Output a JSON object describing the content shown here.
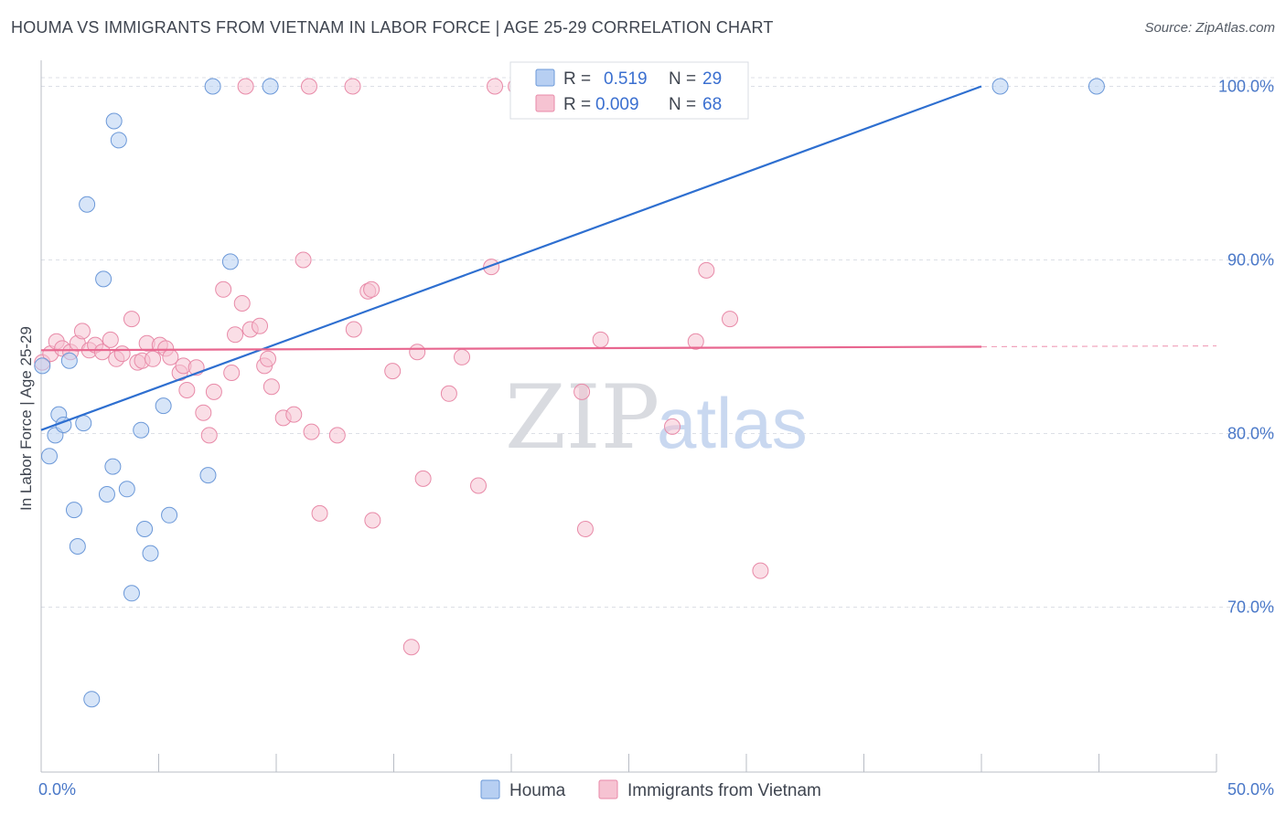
{
  "title": "HOUMA VS IMMIGRANTS FROM VIETNAM IN LABOR FORCE | AGE 25-29 CORRELATION CHART",
  "source": "Source: ZipAtlas.com",
  "watermark": {
    "zip": "ZIP",
    "atlas": "atlas"
  },
  "colors": {
    "blue_fill": "#b7cff2",
    "blue_stroke": "#6b98d8",
    "blue_line": "#2e6fd0",
    "pink_fill": "#f6c3d2",
    "pink_stroke": "#e88aa8",
    "pink_line": "#e8668f",
    "grid": "#dcdfe6",
    "tick_text": "#4a78c8"
  },
  "legend": {
    "rows": [
      {
        "r_label": "R =",
        "r_value": "0.519",
        "n_label": "N =",
        "n_value": "29"
      },
      {
        "r_label": "R =",
        "r_value": "0.009",
        "n_label": "N =",
        "n_value": "68"
      }
    ]
  },
  "chart_data": {
    "type": "scatter",
    "title": "HOUMA VS IMMIGRANTS FROM VIETNAM IN LABOR FORCE | AGE 25-29 CORRELATION CHART",
    "xlabel": "",
    "ylabel": "In Labor Force | Age 25-29",
    "xlim": [
      0,
      50
    ],
    "ylim": [
      60.5,
      101.5
    ],
    "x_tick_labels": [
      "0.0%",
      "50.0%"
    ],
    "y_ticks": [
      70,
      80,
      90,
      100
    ],
    "y_tick_labels": [
      "70.0%",
      "80.0%",
      "90.0%",
      "100.0%"
    ],
    "grid": true,
    "legend_position": "top-center",
    "series": [
      {
        "name": "Houma",
        "color": "blue",
        "r": 0.519,
        "n": 29,
        "trend": {
          "x0": 0.0,
          "y0": 80.2,
          "x1": 40.0,
          "y1": 100.0,
          "dashed_to": 40.0
        },
        "points": [
          [
            0.05,
            83.9
          ],
          [
            0.35,
            78.7
          ],
          [
            0.6,
            79.9
          ],
          [
            0.75,
            81.1
          ],
          [
            0.95,
            80.5
          ],
          [
            1.2,
            84.2
          ],
          [
            1.4,
            75.6
          ],
          [
            1.55,
            73.5
          ],
          [
            1.8,
            80.6
          ],
          [
            1.95,
            93.2
          ],
          [
            2.15,
            64.7
          ],
          [
            2.65,
            88.9
          ],
          [
            2.8,
            76.5
          ],
          [
            3.05,
            78.1
          ],
          [
            3.1,
            98.0
          ],
          [
            3.3,
            96.9
          ],
          [
            3.65,
            76.8
          ],
          [
            3.85,
            70.8
          ],
          [
            4.25,
            80.2
          ],
          [
            4.4,
            74.5
          ],
          [
            4.65,
            73.1
          ],
          [
            5.2,
            81.6
          ],
          [
            5.45,
            75.3
          ],
          [
            7.1,
            77.6
          ],
          [
            7.3,
            100.0
          ],
          [
            8.05,
            89.9
          ],
          [
            9.75,
            100.0
          ],
          [
            40.8,
            100.0
          ],
          [
            44.9,
            100.0
          ]
        ]
      },
      {
        "name": "Immigrants from Vietnam",
        "color": "pink",
        "r": 0.009,
        "n": 68,
        "trend": {
          "x0": 0.0,
          "y0": 84.8,
          "x1": 40.0,
          "y1": 85.0,
          "dashed_to": 50.0
        },
        "points": [
          [
            0.05,
            84.1
          ],
          [
            0.4,
            84.6
          ],
          [
            0.65,
            85.3
          ],
          [
            0.9,
            84.9
          ],
          [
            1.25,
            84.7
          ],
          [
            1.55,
            85.2
          ],
          [
            1.75,
            85.9
          ],
          [
            2.05,
            84.8
          ],
          [
            2.3,
            85.1
          ],
          [
            2.6,
            84.7
          ],
          [
            2.95,
            85.4
          ],
          [
            3.2,
            84.3
          ],
          [
            3.45,
            84.6
          ],
          [
            3.85,
            86.6
          ],
          [
            4.1,
            84.1
          ],
          [
            4.3,
            84.2
          ],
          [
            4.5,
            85.2
          ],
          [
            4.75,
            84.3
          ],
          [
            5.05,
            85.1
          ],
          [
            5.3,
            84.9
          ],
          [
            5.5,
            84.4
          ],
          [
            5.9,
            83.5
          ],
          [
            6.05,
            83.9
          ],
          [
            6.2,
            82.5
          ],
          [
            6.6,
            83.8
          ],
          [
            6.9,
            81.2
          ],
          [
            7.15,
            79.9
          ],
          [
            7.35,
            82.4
          ],
          [
            7.75,
            88.3
          ],
          [
            8.1,
            83.5
          ],
          [
            8.25,
            85.7
          ],
          [
            8.55,
            87.5
          ],
          [
            8.9,
            86.0
          ],
          [
            9.5,
            83.9
          ],
          [
            9.65,
            84.3
          ],
          [
            9.8,
            82.7
          ],
          [
            10.3,
            80.9
          ],
          [
            10.75,
            81.1
          ],
          [
            11.15,
            90.0
          ],
          [
            11.5,
            80.1
          ],
          [
            11.85,
            75.4
          ],
          [
            12.6,
            79.9
          ],
          [
            13.25,
            100.0
          ],
          [
            13.3,
            86.0
          ],
          [
            13.9,
            88.2
          ],
          [
            14.05,
            88.3
          ],
          [
            14.1,
            75.0
          ],
          [
            14.95,
            83.6
          ],
          [
            15.75,
            67.7
          ],
          [
            16.25,
            77.4
          ],
          [
            17.35,
            82.3
          ],
          [
            17.9,
            84.4
          ],
          [
            18.6,
            77.0
          ],
          [
            19.15,
            89.6
          ],
          [
            19.3,
            100.0
          ],
          [
            20.2,
            100.0
          ],
          [
            23.0,
            82.4
          ],
          [
            23.15,
            74.5
          ],
          [
            23.8,
            85.4
          ],
          [
            26.85,
            80.4
          ],
          [
            27.85,
            85.3
          ],
          [
            28.3,
            89.4
          ],
          [
            29.3,
            86.6
          ],
          [
            30.6,
            72.1
          ],
          [
            8.7,
            100.0
          ],
          [
            11.4,
            100.0
          ],
          [
            9.3,
            86.2
          ],
          [
            16.0,
            84.7
          ]
        ]
      }
    ]
  },
  "bottom_legend": [
    {
      "label": "Houma"
    },
    {
      "label": "Immigrants from Vietnam"
    }
  ]
}
